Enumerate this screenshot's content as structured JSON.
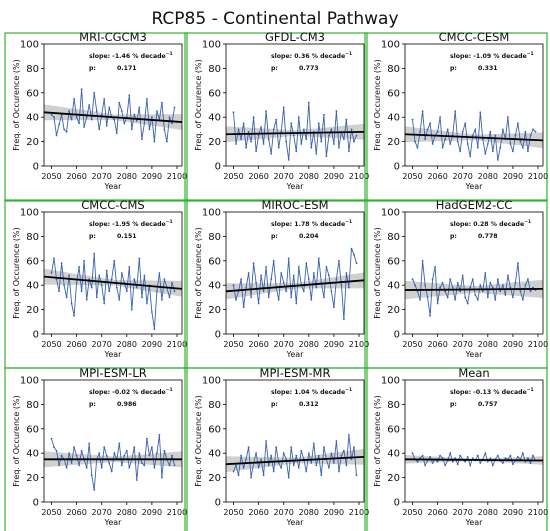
{
  "figure": {
    "title": "RCP85 - Continental Pathway"
  },
  "colors": {
    "series": "#3a62ae",
    "trend": "#000000",
    "band": "#c8c8c8",
    "frame": "#33b233"
  },
  "labels": {
    "xlabel": "Year",
    "ylabel": "Freq. of Occurence (%)",
    "slope_prefix": "slope:",
    "slope_unit": "% decade",
    "slope_exp": "−1",
    "p_prefix": "p:"
  },
  "chart_data": [
    {
      "type": "line",
      "title": "MRI-CGCM3",
      "slope": "-1.46",
      "p": "0.171",
      "xlabel": "Year",
      "ylabel": "Freq. of Occurence (%)",
      "xlim": [
        2047,
        2102
      ],
      "ylim": [
        0,
        100
      ],
      "xticks": [
        2050,
        2060,
        2070,
        2080,
        2090,
        2100
      ],
      "yticks": [
        0,
        20,
        40,
        60,
        80,
        100
      ],
      "trend": [
        44,
        36
      ],
      "band": 5,
      "x": [
        2050,
        2051,
        2052,
        2053,
        2054,
        2055,
        2056,
        2057,
        2058,
        2059,
        2060,
        2061,
        2062,
        2063,
        2064,
        2065,
        2066,
        2067,
        2068,
        2069,
        2070,
        2071,
        2072,
        2073,
        2074,
        2075,
        2076,
        2077,
        2078,
        2079,
        2080,
        2081,
        2082,
        2083,
        2084,
        2085,
        2086,
        2087,
        2088,
        2089,
        2090,
        2091,
        2092,
        2093,
        2094,
        2095,
        2096,
        2097,
        2098,
        2099
      ],
      "values": [
        42,
        40,
        25,
        34,
        42,
        30,
        28,
        45,
        38,
        55,
        40,
        35,
        63,
        32,
        40,
        50,
        38,
        60,
        45,
        30,
        42,
        55,
        33,
        48,
        40,
        38,
        27,
        52,
        45,
        35,
        40,
        58,
        30,
        42,
        37,
        48,
        22,
        35,
        55,
        30,
        40,
        20,
        45,
        38,
        52,
        30,
        20,
        40,
        35,
        48
      ]
    },
    {
      "type": "line",
      "title": "GFDL-CM3",
      "slope": "0.36",
      "p": "0.773",
      "xlabel": "Year",
      "ylabel": "Freq. of Occurence (%)",
      "xlim": [
        2047,
        2102
      ],
      "ylim": [
        0,
        100
      ],
      "xticks": [
        2050,
        2060,
        2070,
        2080,
        2090,
        2100
      ],
      "yticks": [
        0,
        20,
        40,
        60,
        80,
        100
      ],
      "trend": [
        26,
        28
      ],
      "band": 5,
      "x": [
        2050,
        2051,
        2052,
        2053,
        2054,
        2055,
        2056,
        2057,
        2058,
        2059,
        2060,
        2061,
        2062,
        2063,
        2064,
        2065,
        2066,
        2067,
        2068,
        2069,
        2070,
        2071,
        2072,
        2073,
        2074,
        2075,
        2076,
        2077,
        2078,
        2079,
        2080,
        2081,
        2082,
        2083,
        2084,
        2085,
        2086,
        2087,
        2088,
        2089,
        2090,
        2091,
        2092,
        2093,
        2094,
        2095,
        2096,
        2097,
        2098,
        2099
      ],
      "values": [
        44,
        18,
        30,
        22,
        35,
        15,
        28,
        20,
        40,
        12,
        25,
        32,
        18,
        45,
        22,
        10,
        30,
        38,
        15,
        28,
        48,
        20,
        5,
        35,
        25,
        12,
        40,
        18,
        30,
        22,
        52,
        15,
        28,
        10,
        35,
        20,
        42,
        8,
        25,
        30,
        18,
        45,
        15,
        28,
        22,
        38,
        12,
        30,
        20,
        25
      ]
    },
    {
      "type": "line",
      "title": "CMCC-CESM",
      "slope": "-1.09",
      "p": "0.331",
      "xlabel": "Year",
      "ylabel": "Freq. of Occurence (%)",
      "xlim": [
        2047,
        2102
      ],
      "ylim": [
        0,
        100
      ],
      "xticks": [
        2050,
        2060,
        2070,
        2080,
        2090,
        2100
      ],
      "yticks": [
        0,
        20,
        40,
        60,
        80,
        100
      ],
      "trend": [
        26,
        21
      ],
      "band": 5,
      "x": [
        2050,
        2051,
        2052,
        2053,
        2054,
        2055,
        2056,
        2057,
        2058,
        2059,
        2060,
        2061,
        2062,
        2063,
        2064,
        2065,
        2066,
        2067,
        2068,
        2069,
        2070,
        2071,
        2072,
        2073,
        2074,
        2075,
        2076,
        2077,
        2078,
        2079,
        2080,
        2081,
        2082,
        2083,
        2084,
        2085,
        2086,
        2087,
        2088,
        2089,
        2090,
        2091,
        2092,
        2093,
        2094,
        2095,
        2096,
        2097,
        2098,
        2099
      ],
      "values": [
        38,
        20,
        15,
        28,
        45,
        22,
        30,
        35,
        18,
        25,
        28,
        40,
        15,
        22,
        30,
        18,
        25,
        45,
        20,
        12,
        28,
        35,
        18,
        8,
        25,
        30,
        15,
        44,
        22,
        10,
        18,
        28,
        12,
        25,
        5,
        15,
        30,
        22,
        40,
        18,
        12,
        25,
        35,
        20,
        15,
        28,
        12,
        25,
        30,
        28
      ]
    },
    {
      "type": "line",
      "title": "CMCC-CMS",
      "slope": "-1.95",
      "p": "0.151",
      "xlabel": "Year",
      "ylabel": "Freq. of Occurence (%)",
      "xlim": [
        2047,
        2102
      ],
      "ylim": [
        0,
        100
      ],
      "xticks": [
        2050,
        2060,
        2070,
        2080,
        2090,
        2100
      ],
      "yticks": [
        0,
        20,
        40,
        60,
        80,
        100
      ],
      "trend": [
        47,
        37
      ],
      "band": 5,
      "x": [
        2050,
        2051,
        2052,
        2053,
        2054,
        2055,
        2056,
        2057,
        2058,
        2059,
        2060,
        2061,
        2062,
        2063,
        2064,
        2065,
        2066,
        2067,
        2068,
        2069,
        2070,
        2071,
        2072,
        2073,
        2074,
        2075,
        2076,
        2077,
        2078,
        2079,
        2080,
        2081,
        2082,
        2083,
        2084,
        2085,
        2086,
        2087,
        2088,
        2089,
        2090,
        2091,
        2092,
        2093,
        2094,
        2095,
        2096,
        2097,
        2098,
        2099
      ],
      "values": [
        50,
        62,
        45,
        35,
        58,
        40,
        30,
        48,
        25,
        15,
        42,
        55,
        35,
        60,
        28,
        45,
        38,
        66,
        30,
        48,
        40,
        25,
        52,
        35,
        45,
        60,
        38,
        28,
        50,
        42,
        35,
        55,
        20,
        45,
        38,
        62,
        30,
        48,
        25,
        40,
        18,
        4,
        35,
        50,
        28,
        45,
        38,
        30,
        42,
        35
      ]
    },
    {
      "type": "line",
      "title": "MIROC-ESM",
      "slope": "1.78",
      "p": "0.204",
      "xlabel": "Year",
      "ylabel": "Freq. of Occurence (%)",
      "xlim": [
        2047,
        2102
      ],
      "ylim": [
        0,
        100
      ],
      "xticks": [
        2050,
        2060,
        2070,
        2080,
        2090,
        2100
      ],
      "yticks": [
        0,
        20,
        40,
        60,
        80,
        100
      ],
      "trend": [
        35,
        44
      ],
      "band": 5,
      "x": [
        2050,
        2051,
        2052,
        2053,
        2054,
        2055,
        2056,
        2057,
        2058,
        2059,
        2060,
        2061,
        2062,
        2063,
        2064,
        2065,
        2066,
        2067,
        2068,
        2069,
        2070,
        2071,
        2072,
        2073,
        2074,
        2075,
        2076,
        2077,
        2078,
        2079,
        2080,
        2081,
        2082,
        2083,
        2084,
        2085,
        2086,
        2087,
        2088,
        2089,
        2090,
        2091,
        2092,
        2093,
        2094,
        2095,
        2096,
        2097,
        2098,
        2099
      ],
      "values": [
        40,
        28,
        35,
        45,
        22,
        38,
        50,
        30,
        58,
        42,
        25,
        48,
        35,
        55,
        30,
        45,
        60,
        38,
        28,
        50,
        42,
        35,
        62,
        30,
        48,
        25,
        55,
        40,
        35,
        58,
        45,
        28,
        50,
        38,
        62,
        42,
        30,
        55,
        48,
        35,
        22,
        45,
        60,
        40,
        12,
        50,
        38,
        70,
        65,
        58
      ]
    },
    {
      "type": "line",
      "title": "HadGEM2-CC",
      "slope": "0.28",
      "p": "0.778",
      "xlabel": "Year",
      "ylabel": "Freq. of Occurence (%)",
      "xlim": [
        2047,
        2102
      ],
      "ylim": [
        0,
        100
      ],
      "xticks": [
        2050,
        2060,
        2070,
        2080,
        2090,
        2100
      ],
      "yticks": [
        0,
        20,
        40,
        60,
        80,
        100
      ],
      "trend": [
        36,
        37
      ],
      "band": 6,
      "x": [
        2050,
        2051,
        2052,
        2053,
        2054,
        2055,
        2056,
        2057,
        2058,
        2059,
        2060,
        2061,
        2062,
        2063,
        2064,
        2065,
        2066,
        2067,
        2068,
        2069,
        2070,
        2071,
        2072,
        2073,
        2074,
        2075,
        2076,
        2077,
        2078,
        2079,
        2080,
        2081,
        2082,
        2083,
        2084,
        2085,
        2086,
        2087,
        2088,
        2089,
        2090,
        2091,
        2092,
        2093,
        2094,
        2095,
        2096,
        2097,
        2098,
        2099
      ],
      "values": [
        45,
        40,
        35,
        28,
        60,
        40,
        30,
        15,
        45,
        55,
        25,
        38,
        42,
        35,
        30,
        45,
        38,
        28,
        42,
        35,
        48,
        30,
        25,
        38,
        45,
        32,
        28,
        40,
        35,
        50,
        30,
        42,
        38,
        28,
        45,
        35,
        40,
        32,
        48,
        38,
        30,
        42,
        58,
        35,
        28,
        40,
        45,
        35,
        38,
        36
      ]
    },
    {
      "type": "line",
      "title": "MPI-ESM-LR",
      "slope": "-0.02",
      "p": "0.986",
      "xlabel": "Year",
      "ylabel": "Freq. of Occurence (%)",
      "xlim": [
        2047,
        2102
      ],
      "ylim": [
        0,
        100
      ],
      "xticks": [
        2050,
        2060,
        2070,
        2080,
        2090,
        2100
      ],
      "yticks": [
        0,
        20,
        40,
        60,
        80,
        100
      ],
      "trend": [
        35,
        35
      ],
      "band": 5,
      "x": [
        2050,
        2051,
        2052,
        2053,
        2054,
        2055,
        2056,
        2057,
        2058,
        2059,
        2060,
        2061,
        2062,
        2063,
        2064,
        2065,
        2066,
        2067,
        2068,
        2069,
        2070,
        2071,
        2072,
        2073,
        2074,
        2075,
        2076,
        2077,
        2078,
        2079,
        2080,
        2081,
        2082,
        2083,
        2084,
        2085,
        2086,
        2087,
        2088,
        2089,
        2090,
        2091,
        2092,
        2093,
        2094,
        2095,
        2096,
        2097,
        2098,
        2099
      ],
      "values": [
        52,
        45,
        42,
        30,
        38,
        35,
        28,
        40,
        32,
        45,
        38,
        30,
        42,
        35,
        28,
        48,
        22,
        10,
        35,
        40,
        28,
        45,
        38,
        32,
        25,
        40,
        35,
        48,
        30,
        38,
        42,
        28,
        35,
        45,
        18,
        40,
        32,
        30,
        52,
        38,
        45,
        28,
        40,
        55,
        20,
        42,
        35,
        30,
        38,
        30
      ]
    },
    {
      "type": "line",
      "title": "MPI-ESM-MR",
      "slope": "1.04",
      "p": "0.312",
      "xlabel": "Year",
      "ylabel": "Freq. of Occurence (%)",
      "xlim": [
        2047,
        2102
      ],
      "ylim": [
        0,
        100
      ],
      "xticks": [
        2050,
        2060,
        2070,
        2080,
        2090,
        2100
      ],
      "yticks": [
        0,
        20,
        40,
        60,
        80,
        100
      ],
      "trend": [
        31,
        37
      ],
      "band": 5,
      "x": [
        2050,
        2051,
        2052,
        2053,
        2054,
        2055,
        2056,
        2057,
        2058,
        2059,
        2060,
        2061,
        2062,
        2063,
        2064,
        2065,
        2066,
        2067,
        2068,
        2069,
        2070,
        2071,
        2072,
        2073,
        2074,
        2075,
        2076,
        2077,
        2078,
        2079,
        2080,
        2081,
        2082,
        2083,
        2084,
        2085,
        2086,
        2087,
        2088,
        2089,
        2090,
        2091,
        2092,
        2093,
        2094,
        2095,
        2096,
        2097,
        2098,
        2099
      ],
      "values": [
        25,
        30,
        22,
        38,
        28,
        35,
        45,
        20,
        32,
        40,
        28,
        35,
        22,
        50,
        30,
        38,
        25,
        45,
        32,
        28,
        40,
        35,
        20,
        45,
        30,
        38,
        28,
        42,
        35,
        25,
        40,
        32,
        48,
        30,
        38,
        22,
        45,
        35,
        28,
        40,
        32,
        50,
        25,
        38,
        42,
        30,
        55,
        35,
        45,
        22
      ]
    },
    {
      "type": "line",
      "title": "Mean",
      "slope": "-0.13",
      "p": "0.757",
      "xlabel": "Year",
      "ylabel": "Freq. of Occurence (%)",
      "xlim": [
        2047,
        2102
      ],
      "ylim": [
        0,
        100
      ],
      "xticks": [
        2050,
        2060,
        2070,
        2080,
        2090,
        2100
      ],
      "yticks": [
        0,
        20,
        40,
        60,
        80,
        100
      ],
      "trend": [
        35,
        34
      ],
      "band": 2,
      "x": [
        2050,
        2051,
        2052,
        2053,
        2054,
        2055,
        2056,
        2057,
        2058,
        2059,
        2060,
        2061,
        2062,
        2063,
        2064,
        2065,
        2066,
        2067,
        2068,
        2069,
        2070,
        2071,
        2072,
        2073,
        2074,
        2075,
        2076,
        2077,
        2078,
        2079,
        2080,
        2081,
        2082,
        2083,
        2084,
        2085,
        2086,
        2087,
        2088,
        2089,
        2090,
        2091,
        2092,
        2093,
        2094,
        2095,
        2096,
        2097,
        2098,
        2099
      ],
      "values": [
        40,
        35,
        33,
        36,
        38,
        30,
        34,
        37,
        32,
        35,
        33,
        38,
        36,
        30,
        34,
        40,
        33,
        36,
        31,
        38,
        35,
        33,
        37,
        30,
        36,
        34,
        38,
        32,
        35,
        40,
        33,
        36,
        30,
        35,
        38,
        34,
        32,
        36,
        35,
        38,
        31,
        34,
        37,
        35,
        40,
        33,
        36,
        32,
        38,
        34
      ]
    }
  ]
}
